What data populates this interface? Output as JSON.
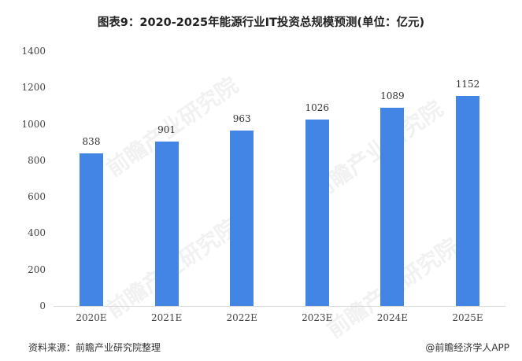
{
  "chart_data": {
    "type": "bar",
    "title": "图表9：2020-2025年能源行业IT投资总规模预测(单位：亿元)",
    "categories": [
      "2020E",
      "2021E",
      "2022E",
      "2023E",
      "2024E",
      "2025E"
    ],
    "values": [
      838,
      901,
      963,
      1026,
      1089,
      1152
    ],
    "series": [
      {
        "name": "能源行业IT投资总规模",
        "values": [
          838,
          901,
          963,
          1026,
          1089,
          1152
        ]
      }
    ],
    "xlabel": "",
    "ylabel": "",
    "ylim": [
      0,
      1400
    ],
    "yticks": [
      0,
      200,
      400,
      600,
      800,
      1000,
      1200,
      1400
    ],
    "grid": false,
    "legend": "none",
    "data_labels": true,
    "bar_color": "#4285e4"
  },
  "title": "图表9：2020-2025年能源行业IT投资总规模预测(单位：亿元)",
  "yticks": [
    "0",
    "200",
    "400",
    "600",
    "800",
    "1000",
    "1200",
    "1400"
  ],
  "bars": [
    {
      "label": "2020E",
      "value": "838"
    },
    {
      "label": "2021E",
      "value": "901"
    },
    {
      "label": "2022E",
      "value": "963"
    },
    {
      "label": "2023E",
      "value": "1026"
    },
    {
      "label": "2024E",
      "value": "1089"
    },
    {
      "label": "2025E",
      "value": "1152"
    }
  ],
  "footer": {
    "source": "资料来源：前瞻产业研究院整理",
    "credit": "@前瞻经济学人APP"
  },
  "watermark": "前瞻产业研究院"
}
